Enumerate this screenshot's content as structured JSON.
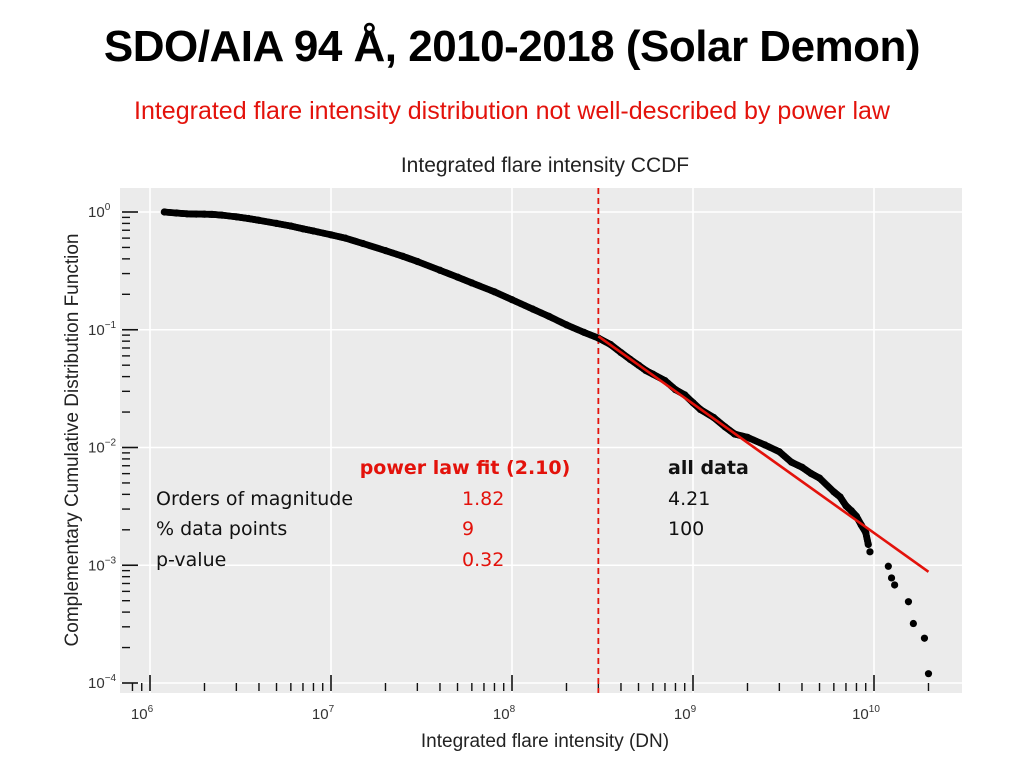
{
  "slide": {
    "title": "SDO/AIA 94 Å, 2010-2018 (Solar Demon)",
    "subtitle": "Integrated flare intensity distribution not well-described by power law"
  },
  "chart_data": {
    "type": "scatter",
    "title": "Integrated flare intensity CCDF",
    "xlabel": "Integrated flare intensity (DN)",
    "ylabel": "Complementary Cumulative Distribution Function",
    "x_scale": "log",
    "y_scale": "log",
    "xlim": [
      500000,
      25000000000
    ],
    "ylim": [
      0.0001,
      1.6
    ],
    "x_ticks": [
      {
        "base": "10",
        "exp": "6",
        "value": 1000000
      },
      {
        "base": "10",
        "exp": "7",
        "value": 10000000
      },
      {
        "base": "10",
        "exp": "8",
        "value": 100000000
      },
      {
        "base": "10",
        "exp": "9",
        "value": 1000000000
      },
      {
        "base": "10",
        "exp": "10",
        "value": 10000000000
      }
    ],
    "y_ticks": [
      {
        "base": "10",
        "exp": "0",
        "value": 1
      },
      {
        "base": "10",
        "exp": "−1",
        "value": 0.1
      },
      {
        "base": "10",
        "exp": "−2",
        "value": 0.01
      },
      {
        "base": "10",
        "exp": "−3",
        "value": 0.001
      },
      {
        "base": "10",
        "exp": "−4",
        "value": 0.0001
      }
    ],
    "grid": true,
    "background": "#ebebeb",
    "series": [
      {
        "name": "all data",
        "kind": "points",
        "color": "#000000",
        "points": [
          [
            1200000,
            1.0
          ],
          [
            1400000,
            0.98
          ],
          [
            1600000,
            0.965
          ],
          [
            1800000,
            0.96
          ],
          [
            2000000,
            0.958
          ],
          [
            2200000,
            0.955
          ],
          [
            2500000,
            0.94
          ],
          [
            3000000,
            0.91
          ],
          [
            3500000,
            0.88
          ],
          [
            4000000,
            0.85
          ],
          [
            5000000,
            0.8
          ],
          [
            6000000,
            0.76
          ],
          [
            7000000,
            0.72
          ],
          [
            8000000,
            0.69
          ],
          [
            10000000,
            0.64
          ],
          [
            12000000,
            0.6
          ],
          [
            15000000,
            0.54
          ],
          [
            20000000,
            0.47
          ],
          [
            25000000,
            0.42
          ],
          [
            30000000,
            0.38
          ],
          [
            40000000,
            0.32
          ],
          [
            50000000,
            0.28
          ],
          [
            60000000,
            0.25
          ],
          [
            80000000,
            0.21
          ],
          [
            100000000,
            0.18
          ],
          [
            130000000,
            0.15
          ],
          [
            160000000,
            0.13
          ],
          [
            200000000,
            0.11
          ],
          [
            250000000,
            0.095
          ],
          [
            300000000,
            0.085
          ],
          [
            350000000,
            0.075
          ],
          [
            400000000,
            0.064
          ],
          [
            450000000,
            0.056
          ],
          [
            500000000,
            0.05
          ],
          [
            550000000,
            0.045
          ],
          [
            600000000,
            0.042
          ],
          [
            700000000,
            0.037
          ],
          [
            800000000,
            0.031
          ],
          [
            900000000,
            0.028
          ],
          [
            1000000000,
            0.024
          ],
          [
            1100000000,
            0.021
          ],
          [
            1300000000,
            0.018
          ],
          [
            1500000000,
            0.015
          ],
          [
            1700000000,
            0.013
          ],
          [
            2000000000,
            0.0122
          ],
          [
            2500000000,
            0.0105
          ],
          [
            3000000000,
            0.0092
          ],
          [
            3500000000,
            0.0075
          ],
          [
            4000000000,
            0.0068
          ],
          [
            4500000000,
            0.006
          ],
          [
            5000000000,
            0.0055
          ],
          [
            6000000000,
            0.0042
          ],
          [
            6500000000,
            0.0038
          ],
          [
            7000000000,
            0.0032
          ],
          [
            7500000000,
            0.0029
          ],
          [
            8000000000,
            0.0026
          ],
          [
            8500000000,
            0.0022
          ],
          [
            9000000000,
            0.0019
          ],
          [
            9300000000,
            0.0015
          ],
          [
            9500000000,
            0.0013
          ],
          [
            12000000000,
            0.00098
          ],
          [
            12500000000,
            0.00078
          ],
          [
            13000000000,
            0.00068
          ],
          [
            15500000000,
            0.00049
          ],
          [
            16500000000,
            0.00032
          ],
          [
            19000000000,
            0.00024
          ],
          [
            20000000000,
            0.00012
          ]
        ]
      },
      {
        "name": "power law fit (2.10)",
        "kind": "line",
        "color": "#e3120b",
        "points": [
          [
            300000000,
            0.088
          ],
          [
            20000000000,
            0.00088
          ]
        ]
      }
    ],
    "threshold": {
      "x": 300000000,
      "color": "#e3120b",
      "style": "dashed"
    },
    "table": {
      "headers": {
        "fit": "power law fit (2.10)",
        "all": "all data"
      },
      "rows": [
        {
          "label": "Orders of magnitude",
          "fit": "1.82",
          "all": "4.21"
        },
        {
          "label": "% data points",
          "fit": "9",
          "all": "100"
        },
        {
          "label": "p-value",
          "fit": "0.32",
          "all": ""
        }
      ]
    }
  }
}
